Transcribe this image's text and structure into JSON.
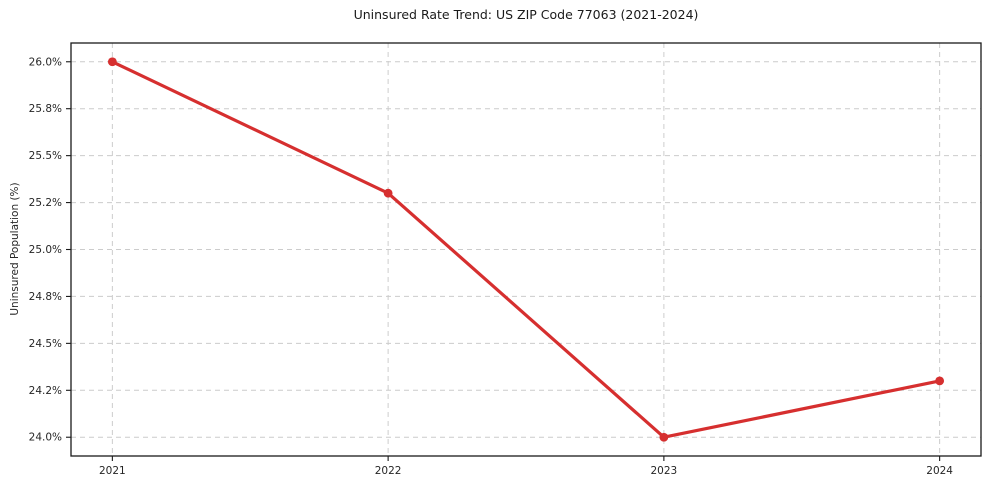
{
  "chart_data": {
    "type": "line",
    "title": "Uninsured Rate Trend: US ZIP Code 77063 (2021-2024)",
    "xlabel": "",
    "ylabel": "Uninsured Population (%)",
    "x": [
      2021,
      2022,
      2023,
      2024
    ],
    "xtick_labels": [
      "2021",
      "2022",
      "2023",
      "2024"
    ],
    "values": [
      26.0,
      25.3,
      24.0,
      24.3
    ],
    "ytick_values": [
      26.0,
      25.75,
      25.5,
      25.25,
      25.0,
      24.75,
      24.5,
      24.25,
      24.0
    ],
    "ytick_labels": [
      "26.0%",
      "25.8%",
      "25.5%",
      "25.2%",
      "25.0%",
      "24.8%",
      "24.5%",
      "24.2%",
      "24.0%"
    ],
    "xlim": [
      2020.85,
      2024.15
    ],
    "ylim": [
      23.9,
      26.1
    ],
    "grid": "dashed-both-axes",
    "legend": "none",
    "marker": "circle",
    "colors": {
      "line": "#d62f2f",
      "grid": "#cccccc",
      "spine": "#1a1a1a",
      "text": "#262626"
    }
  }
}
